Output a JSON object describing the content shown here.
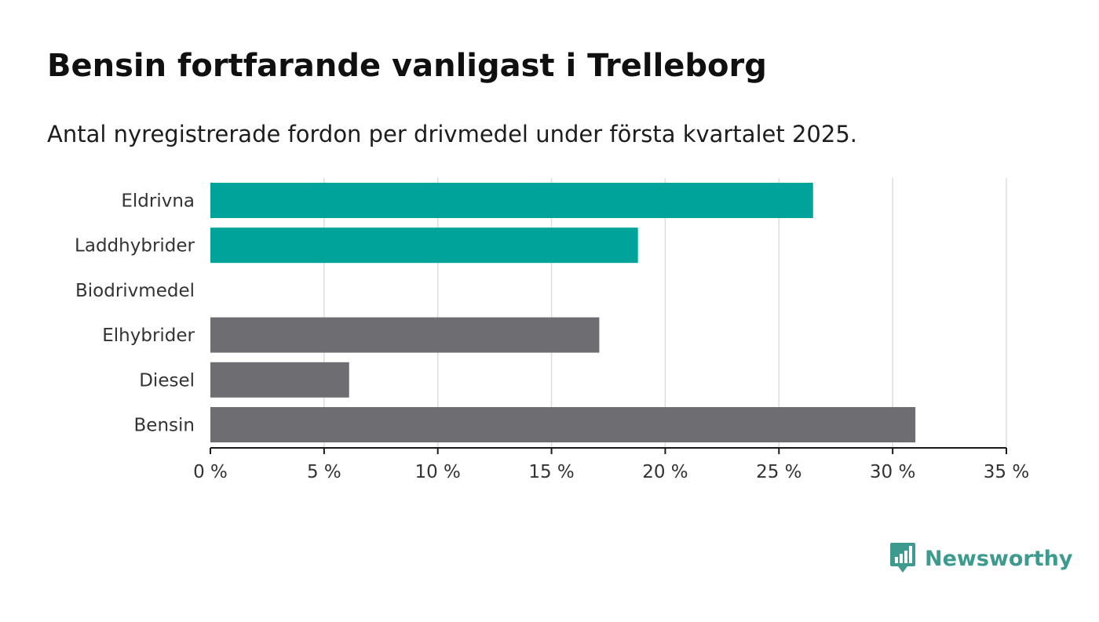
{
  "title": "Bensin fortfarande vanligast i Trelleborg",
  "subtitle": "Antal nyregistrerade fordon per drivmedel under första kvartalet 2025.",
  "brand": {
    "name": "Newsworthy",
    "logo_icon": "bar-chart-speech-bubble-icon",
    "color": "#3d9a8e"
  },
  "colors": {
    "highlight": "#00a39a",
    "default": "#6e6d72",
    "grid": "#dddddd",
    "axis": "#1a1a1a"
  },
  "chart_data": {
    "type": "bar",
    "orientation": "horizontal",
    "categories": [
      "Eldrivna",
      "Laddhybrider",
      "Biodrivmedel",
      "Elhybrider",
      "Diesel",
      "Bensin"
    ],
    "values": [
      26.5,
      18.8,
      0,
      17.1,
      6.1,
      31.0
    ],
    "bar_colors": [
      "#00a39a",
      "#00a39a",
      "#6e6d72",
      "#6e6d72",
      "#6e6d72",
      "#6e6d72"
    ],
    "xlim": [
      0,
      35
    ],
    "xticks": [
      0,
      5,
      10,
      15,
      20,
      25,
      30,
      35
    ],
    "xtick_labels": [
      "0 %",
      "5 %",
      "10 %",
      "15 %",
      "20 %",
      "25 %",
      "30 %",
      "35 %"
    ],
    "xlabel": "",
    "ylabel": "",
    "grid": true,
    "legend": "none"
  }
}
